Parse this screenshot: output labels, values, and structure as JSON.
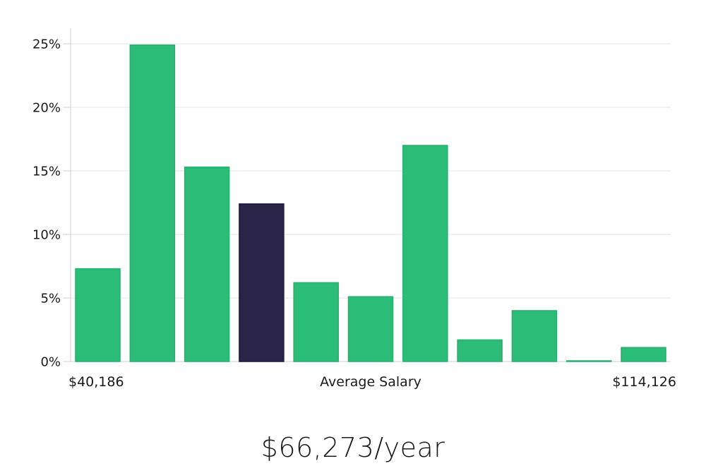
{
  "chart_data": {
    "type": "bar",
    "values": [
      7.3,
      24.9,
      15.3,
      12.4,
      6.2,
      5.1,
      17.0,
      1.7,
      4.0,
      0.05,
      1.1
    ],
    "highlight_index": 3,
    "y_ticks": [
      "0%",
      "5%",
      "10%",
      "15%",
      "20%",
      "25%"
    ],
    "y_tick_values": [
      0,
      5,
      10,
      15,
      20,
      25
    ],
    "ylim": [
      0,
      25
    ],
    "x_min_label": "$40,186",
    "x_max_label": "$114,126",
    "xlabel": "Average Salary",
    "grid": true,
    "colors": {
      "bar": "#2bbd77",
      "highlight": "#2a2548",
      "grid": "#e3e3e3",
      "axis": "#cfcfcf"
    }
  },
  "summary": {
    "salary_text": "$66,273/year"
  }
}
